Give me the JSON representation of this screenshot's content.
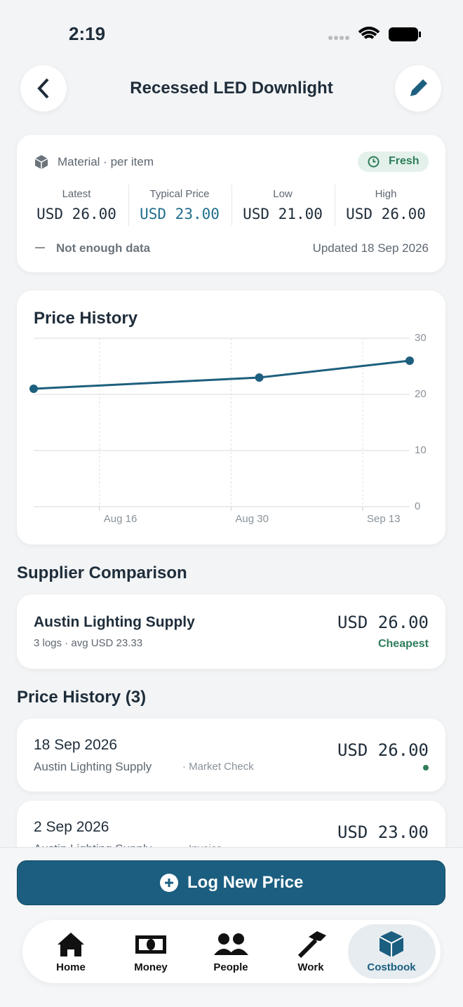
{
  "status_bar": {
    "time": "2:19"
  },
  "header": {
    "title": "Recessed LED Downlight"
  },
  "summary": {
    "kind": "Material · per item",
    "badge": "Fresh",
    "stats": [
      {
        "label": "Latest",
        "value": "USD 26.00"
      },
      {
        "label": "Typical Price",
        "value": "USD 23.00"
      },
      {
        "label": "Low",
        "value": "USD 21.00"
      },
      {
        "label": "High",
        "value": "USD 26.00"
      }
    ],
    "note": "Not enough data",
    "updated": "Updated 18 Sep 2026"
  },
  "chart_data": {
    "type": "line",
    "title": "Price History",
    "x": [
      "2026-08-09",
      "2026-09-02",
      "2026-09-18"
    ],
    "series": [
      {
        "color": "#1d5f7e",
        "values": [
          21,
          23,
          26
        ]
      }
    ],
    "xlim": [
      "2026-08-09",
      "2026-09-18"
    ],
    "xticks": [
      {
        "value": "2026-08-16",
        "label": "Aug 16"
      },
      {
        "value": "2026-08-30",
        "label": "Aug 30"
      },
      {
        "value": "2026-09-13",
        "label": "Sep 13"
      }
    ],
    "ylim": [
      0,
      30
    ],
    "yticks": [
      0,
      10,
      20,
      30
    ],
    "grid": true
  },
  "suppliers": {
    "title": "Supplier Comparison",
    "items": [
      {
        "name": "Austin Lighting Supply",
        "sub": "3 logs · avg USD 23.33",
        "price": "USD 26.00",
        "tag": "Cheapest"
      }
    ]
  },
  "history": {
    "title": "Price History (3)",
    "items": [
      {
        "date": "18 Sep 2026",
        "supplier": "Austin Lighting Supply",
        "source": "· Market Check",
        "price": "USD 26.00"
      },
      {
        "date": "2 Sep 2026",
        "supplier": "Austin Lighting Supply",
        "source": "· Invoice",
        "price": "USD 23.00"
      }
    ]
  },
  "button": "Log New Price",
  "nav": [
    "Home",
    "Money",
    "People",
    "Work",
    "Costbook"
  ]
}
